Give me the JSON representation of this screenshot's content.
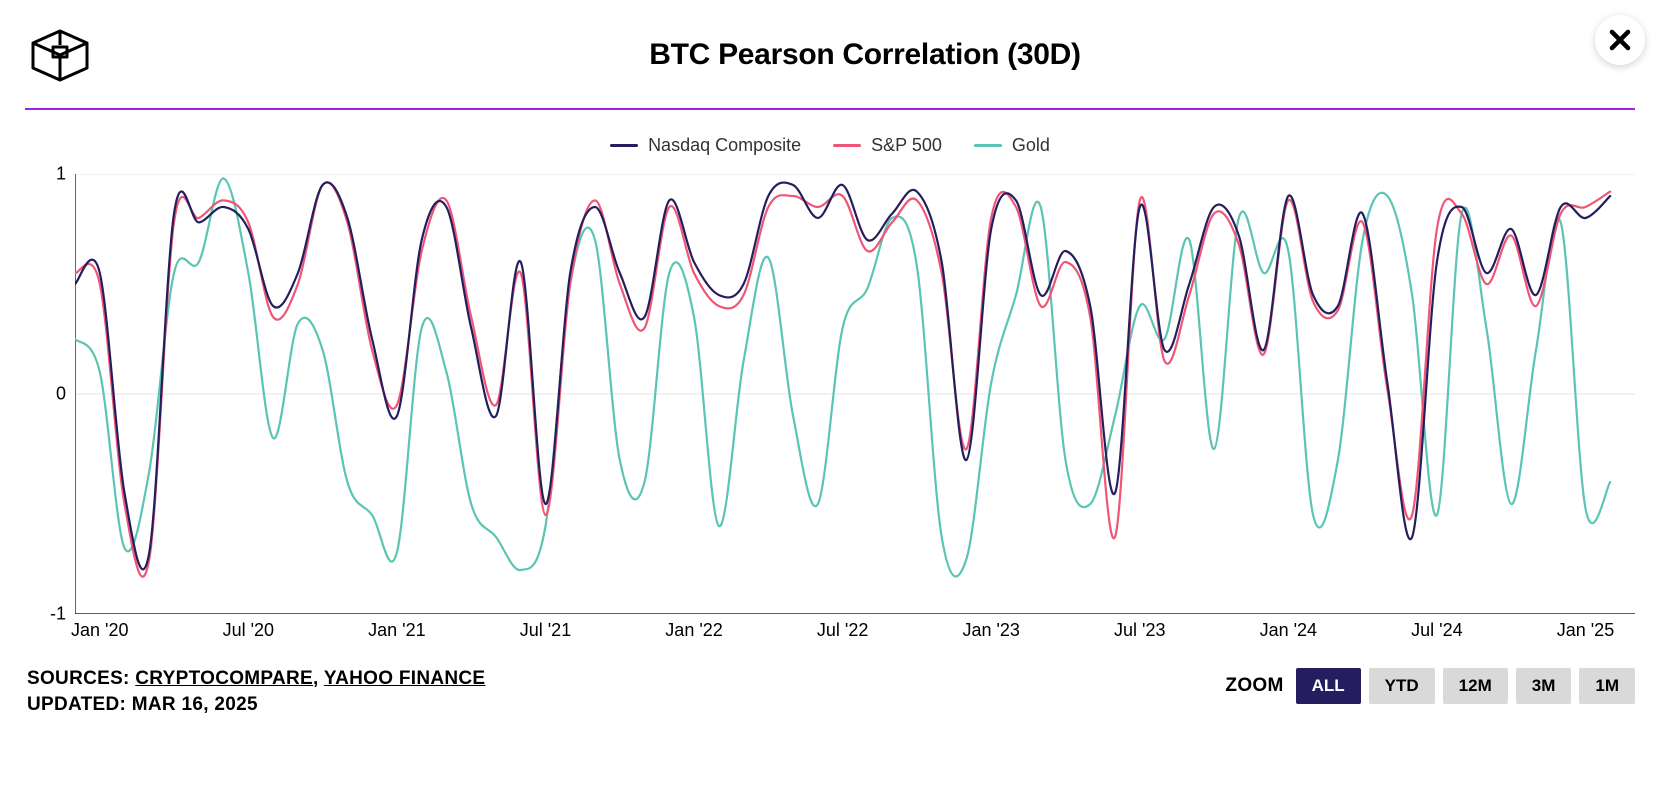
{
  "title": "BTC Pearson Correlation (30D)",
  "divider_color": "#a020f0",
  "background_color": "#ffffff",
  "grid_color": "#e6e6e6",
  "axis_color": "#000000",
  "axis_fontsize": 18,
  "title_fontsize": 30,
  "legend_fontsize": 18,
  "line_width": 2.2,
  "chart": {
    "type": "line",
    "ylim": [
      -1,
      1
    ],
    "yticks": [
      -1,
      0,
      1
    ],
    "xlim": [
      0,
      63
    ],
    "x_tick_labels": [
      "Jan '20",
      "Jul '20",
      "Jan '21",
      "Jul '21",
      "Jan '22",
      "Jul '22",
      "Jan '23",
      "Jul '23",
      "Jan '24",
      "Jul '24",
      "Jan '25"
    ],
    "x_tick_positions": [
      1,
      7,
      13,
      19,
      25,
      31,
      37,
      43,
      49,
      55,
      61
    ],
    "series": [
      {
        "name": "Nasdaq Composite",
        "color": "#241e5e",
        "y": [
          0.5,
          0.55,
          -0.45,
          -0.72,
          0.82,
          0.78,
          0.85,
          0.75,
          0.4,
          0.55,
          0.95,
          0.8,
          0.25,
          -0.1,
          0.7,
          0.85,
          0.3,
          -0.1,
          0.6,
          -0.5,
          0.55,
          0.85,
          0.55,
          0.35,
          0.88,
          0.6,
          0.45,
          0.5,
          0.9,
          0.95,
          0.8,
          0.95,
          0.7,
          0.82,
          0.92,
          0.6,
          -0.3,
          0.75,
          0.88,
          0.45,
          0.65,
          0.4,
          -0.45,
          0.85,
          0.2,
          0.5,
          0.85,
          0.72,
          0.2,
          0.9,
          0.45,
          0.4,
          0.82,
          0.05,
          -0.65,
          0.6,
          0.85,
          0.55,
          0.75,
          0.45,
          0.85,
          0.8,
          0.9
        ]
      },
      {
        "name": "S&P 500",
        "color": "#ef5675",
        "y": [
          0.55,
          0.5,
          -0.5,
          -0.75,
          0.78,
          0.8,
          0.88,
          0.78,
          0.35,
          0.5,
          0.95,
          0.78,
          0.2,
          -0.05,
          0.65,
          0.88,
          0.35,
          -0.05,
          0.55,
          -0.55,
          0.5,
          0.88,
          0.5,
          0.3,
          0.85,
          0.55,
          0.4,
          0.45,
          0.85,
          0.9,
          0.85,
          0.9,
          0.65,
          0.78,
          0.88,
          0.55,
          -0.25,
          0.8,
          0.85,
          0.4,
          0.6,
          0.35,
          -0.65,
          0.88,
          0.15,
          0.45,
          0.82,
          0.68,
          0.18,
          0.88,
          0.42,
          0.38,
          0.78,
          0.02,
          -0.55,
          0.75,
          0.82,
          0.5,
          0.72,
          0.4,
          0.82,
          0.85,
          0.92
        ]
      },
      {
        "name": "Gold",
        "color": "#5bc4b4",
        "y": [
          0.25,
          0.1,
          -0.7,
          -0.35,
          0.55,
          0.6,
          0.98,
          0.55,
          -0.2,
          0.32,
          0.2,
          -0.4,
          -0.55,
          -0.72,
          0.3,
          0.1,
          -0.5,
          -0.65,
          -0.8,
          -0.6,
          0.5,
          0.7,
          -0.3,
          -0.4,
          0.55,
          0.35,
          -0.6,
          0.15,
          0.62,
          -0.1,
          -0.5,
          0.3,
          0.48,
          0.8,
          0.58,
          -0.65,
          -0.75,
          0.05,
          0.45,
          0.85,
          -0.3,
          -0.5,
          -0.1,
          0.4,
          0.25,
          0.7,
          -0.25,
          0.8,
          0.55,
          0.65,
          -0.55,
          -0.3,
          0.7,
          0.9,
          0.45,
          -0.55,
          0.82,
          0.3,
          -0.5,
          0.2,
          0.78,
          -0.52,
          -0.4
        ]
      }
    ]
  },
  "sources": {
    "prefix": "SOURCES: ",
    "links": [
      "CRYPTOCOMPARE",
      "YAHOO FINANCE"
    ],
    "separator": ", ",
    "updated_prefix": "UPDATED: ",
    "updated": "MAR 16, 2025"
  },
  "zoom": {
    "label": "ZOOM",
    "options": [
      "ALL",
      "YTD",
      "12M",
      "3M",
      "1M"
    ],
    "active": "ALL",
    "active_bg": "#241e5e",
    "active_fg": "#ffffff",
    "inactive_bg": "#d9d9d9",
    "inactive_fg": "#000000"
  }
}
